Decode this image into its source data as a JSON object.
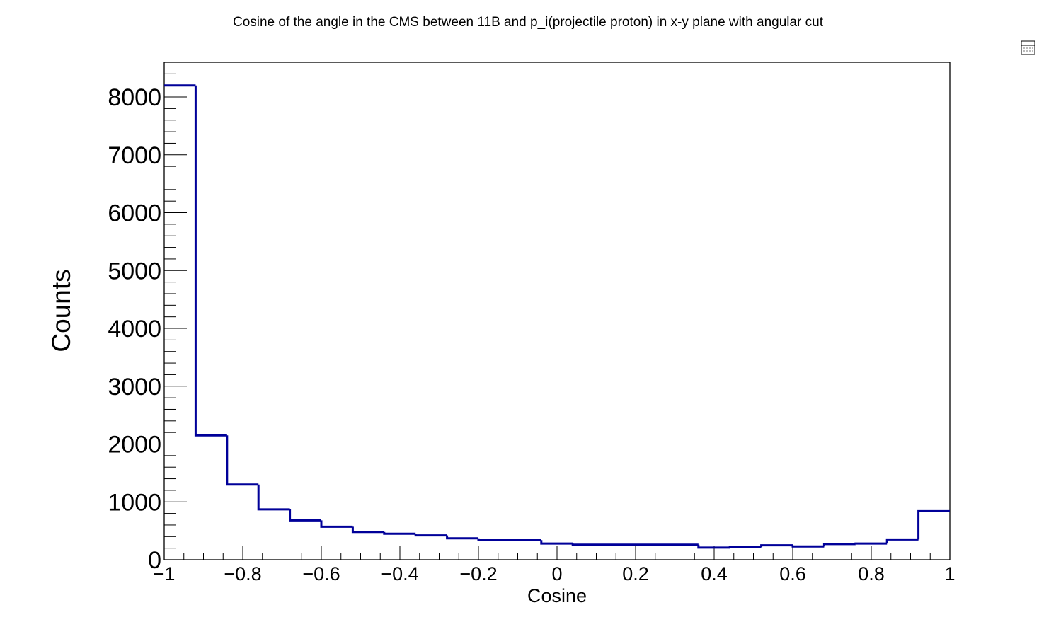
{
  "chart_data": {
    "type": "bar",
    "title": "Cosine of the angle in the CMS between 11B and p_i(projectile proton) in x-y plane with angular cut",
    "xlabel": "Cosine",
    "ylabel": "Counts",
    "xlim": [
      -1,
      1
    ],
    "ylim": [
      0,
      8600
    ],
    "bin_width": 0.08,
    "bin_edges_start": -1,
    "values": [
      8200,
      2150,
      1300,
      870,
      680,
      570,
      480,
      450,
      420,
      370,
      340,
      340,
      280,
      260,
      260,
      260,
      260,
      210,
      220,
      250,
      230,
      270,
      280,
      350,
      840
    ],
    "y_ticks": [
      {
        "value": 0,
        "label": "0"
      },
      {
        "value": 1000,
        "label": "1000"
      },
      {
        "value": 2000,
        "label": "2000"
      },
      {
        "value": 3000,
        "label": "3000"
      },
      {
        "value": 4000,
        "label": "4000"
      },
      {
        "value": 5000,
        "label": "5000"
      },
      {
        "value": 6000,
        "label": "6000"
      },
      {
        "value": 7000,
        "label": "7000"
      },
      {
        "value": 8000,
        "label": "8000"
      }
    ],
    "x_ticks": [
      {
        "value": -1,
        "label": "−1"
      },
      {
        "value": -0.8,
        "label": "−0.8"
      },
      {
        "value": -0.6,
        "label": "−0.6"
      },
      {
        "value": -0.4,
        "label": "−0.4"
      },
      {
        "value": -0.2,
        "label": "−0.2"
      },
      {
        "value": 0,
        "label": "0"
      },
      {
        "value": 0.2,
        "label": "0.2"
      },
      {
        "value": 0.4,
        "label": "0.4"
      },
      {
        "value": 0.6,
        "label": "0.6"
      },
      {
        "value": 0.8,
        "label": "0.8"
      },
      {
        "value": 1,
        "label": "1"
      }
    ],
    "grid": false,
    "legend": "none",
    "line_color": "#000099"
  },
  "toolbar": {
    "icon": "canvas-menu-icon"
  }
}
